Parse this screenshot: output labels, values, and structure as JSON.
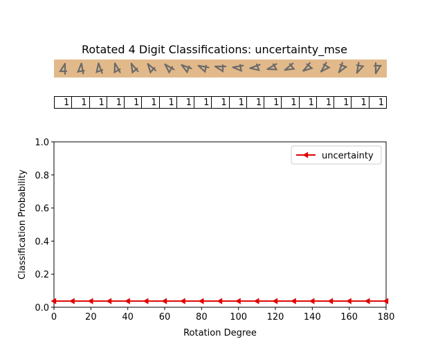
{
  "title": "Rotated 4 Digit Classifications: uncertainty_mse",
  "thumbnail_icon": "rotated-digit-4-icon",
  "thumbnail_colors": {
    "background": "#e2b98a",
    "digit": "#6a6a6a"
  },
  "predicted_labels": [
    "1",
    "1",
    "1",
    "1",
    "1",
    "1",
    "1",
    "1",
    "1",
    "1",
    "1",
    "1",
    "1",
    "1",
    "1",
    "1",
    "1",
    "1",
    "1"
  ],
  "chart_data": {
    "type": "line",
    "xlabel": "Rotation Degree",
    "ylabel": "Classification Probability",
    "xlim": [
      0,
      180
    ],
    "ylim": [
      0,
      1.0
    ],
    "x_ticks": [
      "0",
      "20",
      "40",
      "60",
      "80",
      "100",
      "120",
      "140",
      "160",
      "180"
    ],
    "y_ticks": [
      "0.0",
      "0.2",
      "0.4",
      "0.6",
      "0.8",
      "1.0"
    ],
    "grid": false,
    "legend_position": "top-right",
    "x": [
      0,
      10,
      20,
      30,
      40,
      50,
      60,
      70,
      80,
      90,
      100,
      110,
      120,
      130,
      140,
      150,
      160,
      170,
      180
    ],
    "series": [
      {
        "name": "uncertainty",
        "color": "#e00000",
        "marker": "triangle-left",
        "values": [
          0.037,
          0.037,
          0.037,
          0.037,
          0.037,
          0.037,
          0.037,
          0.037,
          0.037,
          0.037,
          0.037,
          0.037,
          0.037,
          0.037,
          0.037,
          0.037,
          0.037,
          0.037,
          0.037
        ]
      }
    ]
  }
}
